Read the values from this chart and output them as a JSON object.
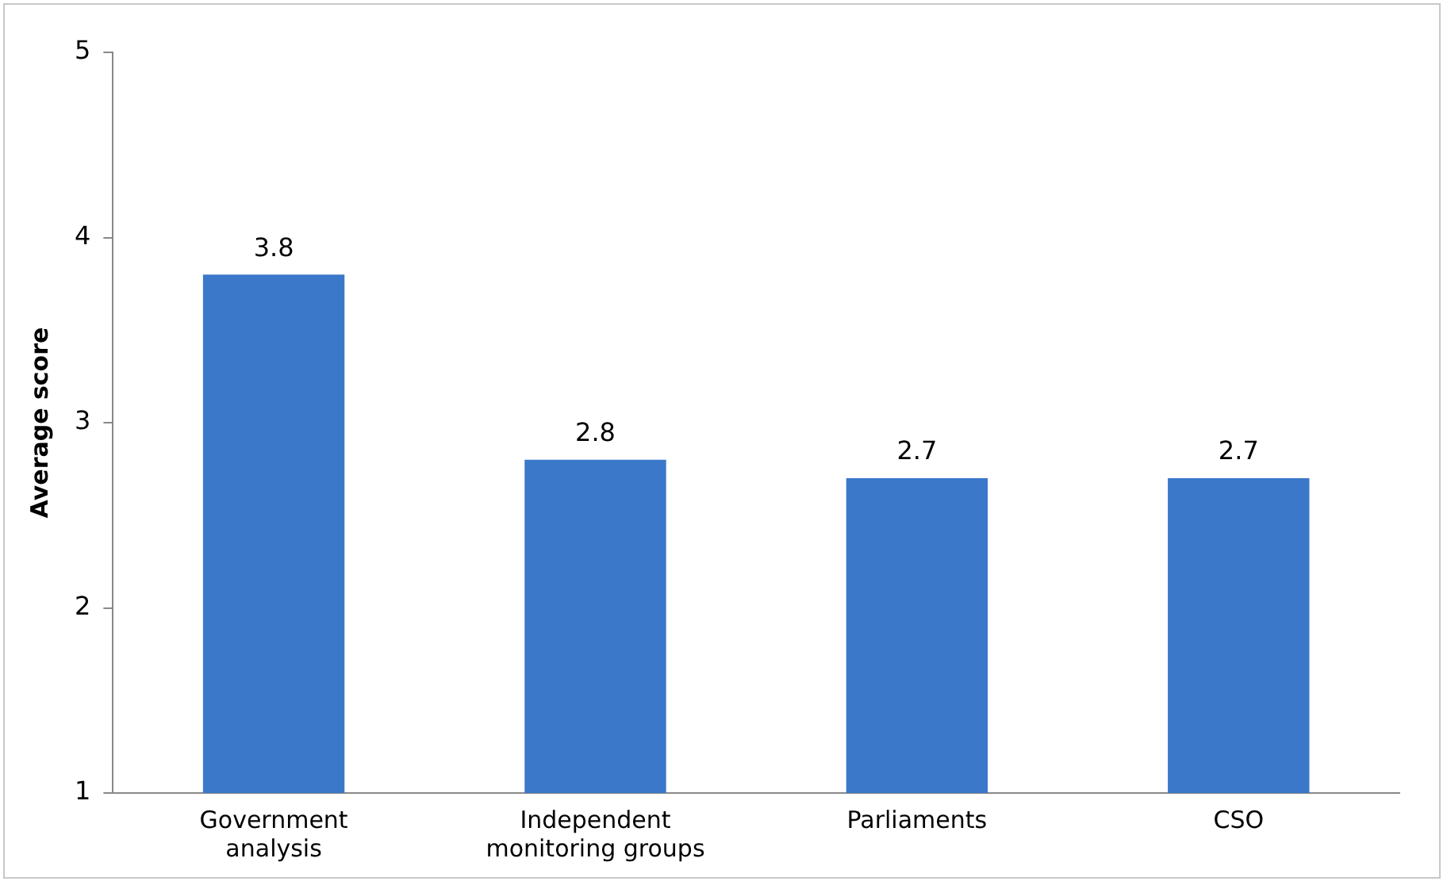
{
  "chart_data": {
    "type": "bar",
    "ylabel": "Average score",
    "categories": [
      "Government analysis",
      "Independent monitoring groups",
      "Parliaments",
      "CSO"
    ],
    "values": [
      3.8,
      2.8,
      2.7,
      2.7
    ],
    "color": "#3b78c9",
    "ylim": [
      1,
      5
    ],
    "yticks": [
      1,
      2,
      3,
      4,
      5
    ],
    "grid": false,
    "legend": false,
    "data_labels": true
  }
}
